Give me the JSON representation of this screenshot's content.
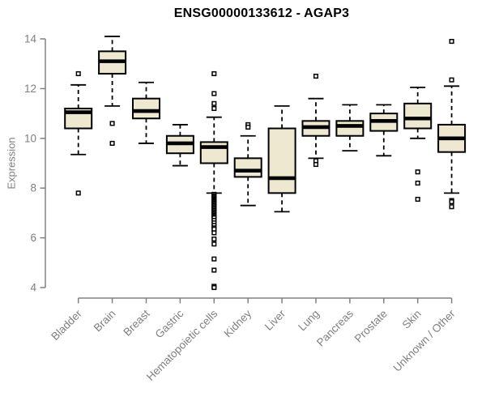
{
  "chart_data": {
    "type": "boxplot",
    "title": "ENSG00000133612 - AGAP3",
    "ylabel": "Expression",
    "xlabel": "",
    "ylim": [
      4,
      14
    ],
    "yticks": [
      4,
      6,
      8,
      10,
      12,
      14
    ],
    "grid": false,
    "legend_position": "none",
    "colors": {
      "box_fill": "#EDE8CF",
      "box_stroke": "#000000",
      "median": "#000000",
      "whisker": "#000000",
      "outlier_stroke": "#000000",
      "outlier_fill": "#ffffff",
      "axis_line": "#808080",
      "tick_label": "#7f7f7f",
      "title_color": "#000000",
      "background": "#ffffff"
    },
    "categories": [
      "Bladder",
      "Brain",
      "Breast",
      "Gastric",
      "Hematopoietic cells",
      "Kidney",
      "Liver",
      "Lung",
      "Pancreas",
      "Prostate",
      "Skin",
      "Unknown / Other"
    ],
    "series": [
      {
        "category": "Bladder",
        "whisker_low": 9.35,
        "q1": 10.4,
        "median": 11.05,
        "q3": 11.2,
        "whisker_high": 12.15,
        "outliers": [
          12.6,
          7.8
        ]
      },
      {
        "category": "Brain",
        "whisker_low": 11.3,
        "q1": 12.6,
        "median": 13.1,
        "q3": 13.5,
        "whisker_high": 14.1,
        "outliers": [
          10.6,
          9.8
        ]
      },
      {
        "category": "Breast",
        "whisker_low": 9.8,
        "q1": 10.8,
        "median": 11.1,
        "q3": 11.6,
        "whisker_high": 12.25,
        "outliers": []
      },
      {
        "category": "Gastric",
        "whisker_low": 8.9,
        "q1": 9.4,
        "median": 9.8,
        "q3": 10.1,
        "whisker_high": 10.55,
        "outliers": []
      },
      {
        "category": "Hematopoietic cells",
        "whisker_low": 7.8,
        "q1": 9.0,
        "median": 9.65,
        "q3": 9.85,
        "whisker_high": 10.85,
        "outliers": [
          12.6,
          11.8,
          11.4,
          11.2,
          7.75,
          7.7,
          7.65,
          7.6,
          7.55,
          7.5,
          7.45,
          7.4,
          7.35,
          7.3,
          7.25,
          7.2,
          7.15,
          7.1,
          7.05,
          7.0,
          6.95,
          6.9,
          6.85,
          6.8,
          6.7,
          6.6,
          6.5,
          6.4,
          6.35,
          6.2,
          5.95,
          5.75,
          5.15,
          4.7,
          4.05,
          4.0
        ]
      },
      {
        "category": "Kidney",
        "whisker_low": 7.3,
        "q1": 8.45,
        "median": 8.7,
        "q3": 9.2,
        "whisker_high": 10.1,
        "outliers": [
          10.55,
          10.45
        ]
      },
      {
        "category": "Liver",
        "whisker_low": 7.05,
        "q1": 7.8,
        "median": 8.4,
        "q3": 10.4,
        "whisker_high": 11.3,
        "outliers": []
      },
      {
        "category": "Lung",
        "whisker_low": 9.2,
        "q1": 10.1,
        "median": 10.45,
        "q3": 10.7,
        "whisker_high": 11.6,
        "outliers": [
          12.5,
          9.1,
          8.95
        ]
      },
      {
        "category": "Pancreas",
        "whisker_low": 9.5,
        "q1": 10.1,
        "median": 10.5,
        "q3": 10.7,
        "whisker_high": 11.35,
        "outliers": []
      },
      {
        "category": "Prostate",
        "whisker_low": 9.3,
        "q1": 10.3,
        "median": 10.7,
        "q3": 11.0,
        "whisker_high": 11.35,
        "outliers": []
      },
      {
        "category": "Skin",
        "whisker_low": 10.0,
        "q1": 10.4,
        "median": 10.8,
        "q3": 11.4,
        "whisker_high": 12.05,
        "outliers": [
          8.65,
          8.2,
          7.55
        ]
      },
      {
        "category": "Unknown / Other",
        "whisker_low": 7.8,
        "q1": 9.45,
        "median": 10.0,
        "q3": 10.55,
        "whisker_high": 12.1,
        "outliers": [
          13.9,
          12.35,
          7.5,
          7.45,
          7.25
        ]
      }
    ]
  }
}
